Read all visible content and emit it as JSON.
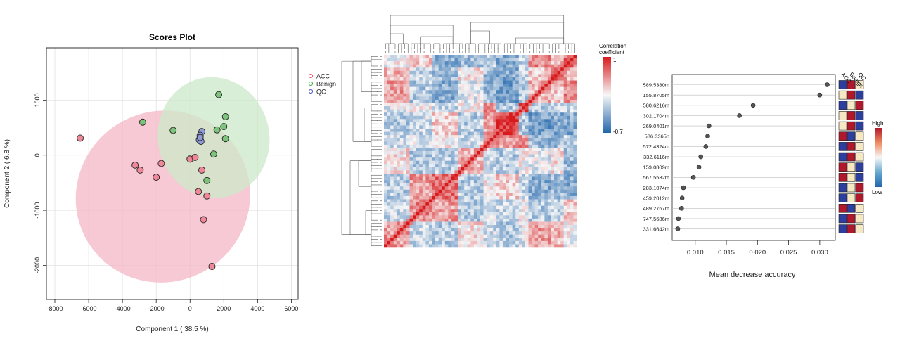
{
  "chart_data": [
    {
      "type": "scatter",
      "title": "Scores Plot",
      "xlabel": "Component 1 ( 38.5 %)",
      "ylabel": "Component 2 ( 6.8 %)",
      "xlim": [
        -8500,
        6400
      ],
      "ylim": [
        -2620,
        1950
      ],
      "xticks": [
        -8000,
        -6000,
        -4000,
        -2000,
        0,
        2000,
        4000,
        6000
      ],
      "yticks": [
        -2000,
        -1000,
        0,
        1000
      ],
      "grid": true,
      "legend_position": "top-right",
      "series": [
        {
          "name": "ACC",
          "color": "#e8627d",
          "fill": "#ee8898",
          "ellipse": {
            "cx": -1600,
            "cy": -750,
            "rx": 5200,
            "ry": 1550,
            "angle_deg": -30,
            "fill": "#f4b7c6"
          },
          "points": [
            [
              -6500,
              310
            ],
            [
              -3250,
              -180
            ],
            [
              -2950,
              -270
            ],
            [
              -2000,
              -400
            ],
            [
              -1700,
              -150
            ],
            [
              0,
              -70
            ],
            [
              300,
              -40
            ],
            [
              700,
              -270
            ],
            [
              500,
              -660
            ],
            [
              1000,
              -740
            ],
            [
              800,
              -1170
            ],
            [
              1300,
              -2020
            ]
          ]
        },
        {
          "name": "Benign",
          "color": "#4caf50",
          "fill": "#7cc47c",
          "ellipse": {
            "cx": 1400,
            "cy": 320,
            "rx": 3300,
            "ry": 1100,
            "angle_deg": -12,
            "fill": "#cce8c8"
          },
          "points": [
            [
              1700,
              1100
            ],
            [
              2100,
              700
            ],
            [
              2000,
              520
            ],
            [
              1600,
              460
            ],
            [
              2100,
              300
            ],
            [
              1400,
              20
            ],
            [
              1000,
              -460
            ],
            [
              -2800,
              600
            ],
            [
              -1000,
              450
            ]
          ]
        },
        {
          "name": "QC",
          "color": "#4b5bcc",
          "fill": "#8f9ad8",
          "points": [
            [
              700,
              430
            ],
            [
              600,
              360
            ],
            [
              550,
              280
            ],
            [
              650,
              250
            ],
            [
              600,
              320
            ]
          ]
        }
      ]
    },
    {
      "type": "heatmap",
      "description": "Hierarchically clustered correlation matrix",
      "legend_title": "Correlation\ncoefficient",
      "legend_max": "1",
      "legend_min": "-0.7",
      "colors": {
        "high": "#d7191c",
        "mid": "#f7f7f7",
        "low": "#2166ac"
      }
    },
    {
      "type": "scatter",
      "subtype": "dot-plot",
      "xlabel": "Mean decrease accuracy",
      "xlim": [
        0.0063,
        0.0325
      ],
      "xticks": [
        0.01,
        0.015,
        0.02,
        0.025,
        0.03
      ],
      "xtick_labels": [
        "0.010",
        "0.015",
        "0.020",
        "0.025",
        "0.030"
      ],
      "labels": [
        "589.5380m",
        "155.8705m",
        "580.6216m",
        "302.1704m",
        "269.0401m",
        "586.3365n",
        "572.4324m",
        "332.6116m",
        "159.0809m",
        "567.5532m",
        "283.1074m",
        "459.2012m",
        "489.2767m",
        "747.5686m",
        "331.6642m"
      ],
      "values": [
        0.0312,
        0.03,
        0.0193,
        0.0171,
        0.0122,
        0.012,
        0.0117,
        0.0109,
        0.0106,
        0.0097,
        0.0081,
        0.0079,
        0.0078,
        0.0073,
        0.0072
      ],
      "group_columns": [
        "ACC",
        "Benign",
        "QC"
      ],
      "group_levels": [
        [
          "low",
          "high",
          "mid"
        ],
        [
          "mid",
          "high",
          "low"
        ],
        [
          "low",
          "mid",
          "high"
        ],
        [
          "mid",
          "high",
          "low"
        ],
        [
          "mid",
          "high",
          "low"
        ],
        [
          "high",
          "low",
          "mid"
        ],
        [
          "low",
          "high",
          "mid"
        ],
        [
          "low",
          "high",
          "mid"
        ],
        [
          "high",
          "mid",
          "low"
        ],
        [
          "high",
          "mid",
          "low"
        ],
        [
          "low",
          "mid",
          "high"
        ],
        [
          "low",
          "mid",
          "high"
        ],
        [
          "high",
          "low",
          "mid"
        ],
        [
          "low",
          "high",
          "mid"
        ],
        [
          "low",
          "high",
          "mid"
        ]
      ],
      "level_colors": {
        "high": "#b2182b",
        "mid": "#f6e8c3",
        "low": "#2c3e9e"
      },
      "scale_high": "High",
      "scale_low": "Low"
    }
  ]
}
